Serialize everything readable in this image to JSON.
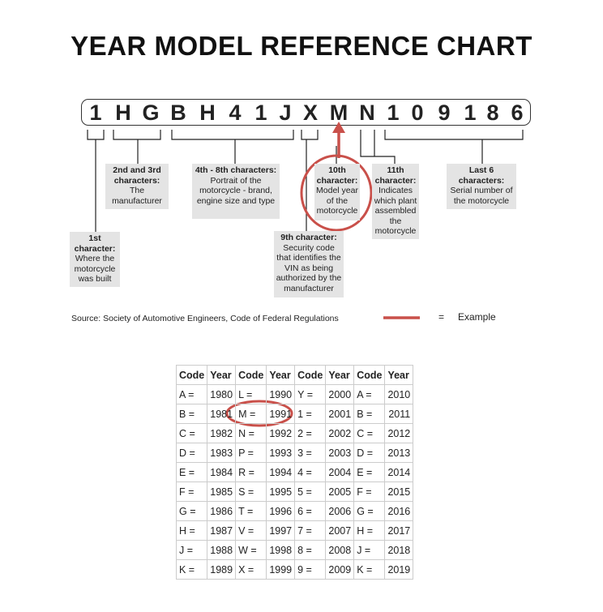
{
  "title": "YEAR MODEL REFERENCE CHART",
  "vin": [
    "1",
    "H",
    "G",
    "B",
    "H",
    "4",
    "1",
    "J",
    "X",
    "M",
    "N",
    "1",
    "0",
    "9",
    "1",
    "8",
    "6"
  ],
  "labels": {
    "c1": {
      "head": "1st character:",
      "body": "Where the motorcycle was built"
    },
    "c23": {
      "head": "2nd and 3rd characters:",
      "body": "The manufacturer"
    },
    "c48": {
      "head": "4th - 8th characters:",
      "body": "Portrait of the motorcycle - brand, engine size and type"
    },
    "c9": {
      "head": "9th character:",
      "body": "Security code that identifies the VIN as being authorized by the manufacturer"
    },
    "c10": {
      "head": "10th character:",
      "body": "Model year of the motorcycle"
    },
    "c11": {
      "head": "11th character:",
      "body": "Indicates which plant assembled the motorcycle"
    },
    "last6": {
      "head": "Last 6 characters:",
      "body": "Serial number of the motorcycle"
    }
  },
  "source": "Source:  Society of Automotive Engineers, Code of Federal Regulations",
  "legend": {
    "equals": "=",
    "label": "Example",
    "color": "#c9504a"
  },
  "table": {
    "headers": [
      "Code",
      "Year",
      "Code",
      "Year",
      "Code",
      "Year",
      "Code",
      "Year"
    ],
    "rows": [
      [
        "A =",
        "1980",
        "L =",
        "1990",
        "Y =",
        "2000",
        "A =",
        "2010"
      ],
      [
        "B =",
        "1981",
        "M =",
        "1991",
        "1 =",
        "2001",
        "B =",
        "2011"
      ],
      [
        "C =",
        "1982",
        "N =",
        "1992",
        "2 =",
        "2002",
        "C =",
        "2012"
      ],
      [
        "D =",
        "1983",
        "P =",
        "1993",
        "3 =",
        "2003",
        "D =",
        "2013"
      ],
      [
        "E =",
        "1984",
        "R =",
        "1994",
        "4 =",
        "2004",
        "E =",
        "2014"
      ],
      [
        "F =",
        "1985",
        "S =",
        "1995",
        "5 =",
        "2005",
        "F =",
        "2015"
      ],
      [
        "G =",
        "1986",
        "T =",
        "1996",
        "6 =",
        "2006",
        "G =",
        "2016"
      ],
      [
        "H =",
        "1987",
        "V =",
        "1997",
        "7 =",
        "2007",
        "H =",
        "2017"
      ],
      [
        "J =",
        "1988",
        "W =",
        "1998",
        "8 =",
        "2008",
        "J =",
        "2018"
      ],
      [
        "K =",
        "1989",
        "X =",
        "1999",
        "9 =",
        "2009",
        "K =",
        "2019"
      ]
    ]
  }
}
